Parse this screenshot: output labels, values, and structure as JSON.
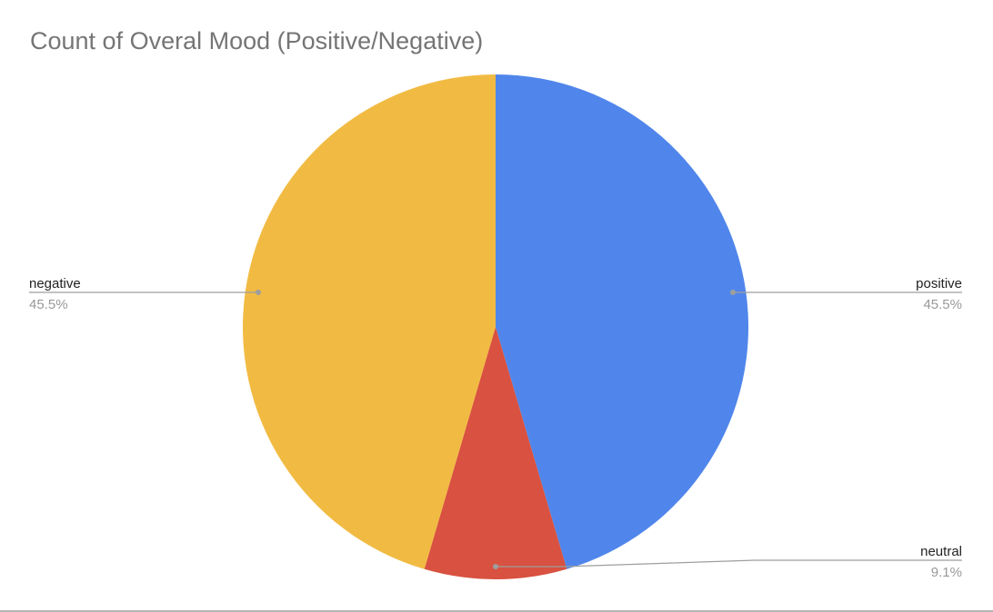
{
  "chart_data": {
    "type": "pie",
    "title": "Count of Overal Mood (Positive/Negative)",
    "slices": [
      {
        "label": "positive",
        "percent_label": "45.5%",
        "value": 45.5,
        "color": "#5086eb"
      },
      {
        "label": "neutral",
        "percent_label": "9.1%",
        "value": 9.1,
        "color": "#d95140"
      },
      {
        "label": "negative",
        "percent_label": "45.5%",
        "value": 45.5,
        "color": "#f1bb43"
      }
    ]
  }
}
